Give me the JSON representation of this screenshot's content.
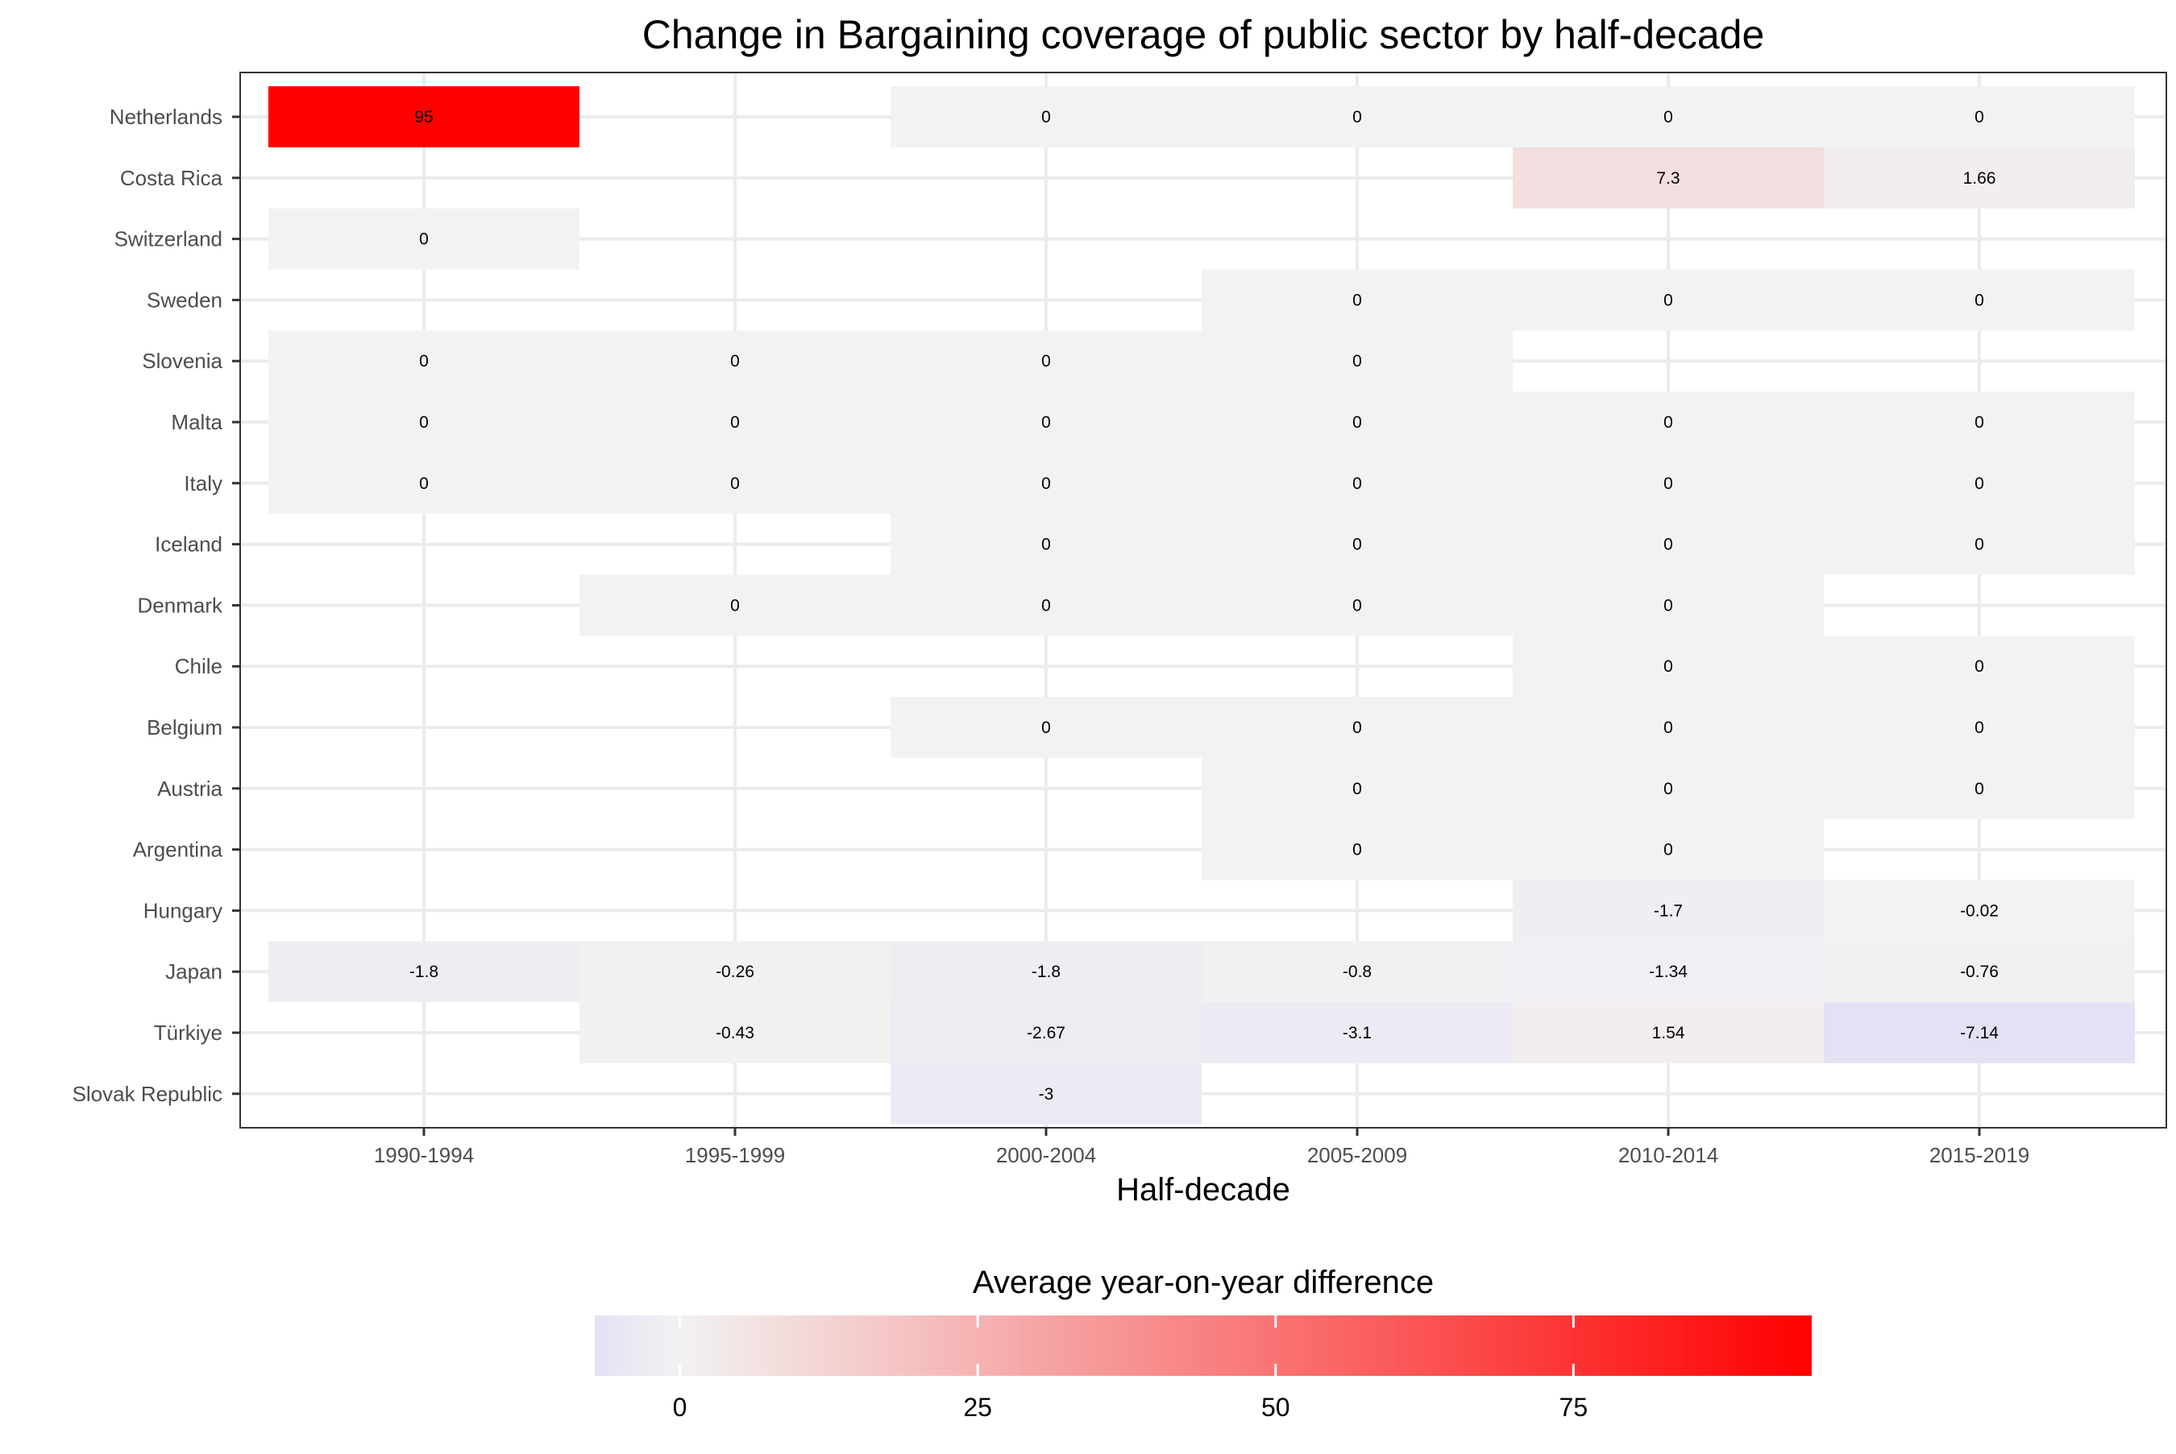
{
  "chart_data": {
    "type": "heatmap",
    "title": "Change in Bargaining coverage of public sector by half-decade",
    "xlabel": "Half-decade",
    "ylabel": "",
    "x_categories": [
      "1990-1994",
      "1995-1999",
      "2000-2004",
      "2005-2009",
      "2010-2014",
      "2015-2019"
    ],
    "y_categories": [
      "Netherlands",
      "Costa Rica",
      "Switzerland",
      "Sweden",
      "Slovenia",
      "Malta",
      "Italy",
      "Iceland",
      "Denmark",
      "Chile",
      "Belgium",
      "Austria",
      "Argentina",
      "Hungary",
      "Japan",
      "Türkiye",
      "Slovak Republic"
    ],
    "cells": [
      {
        "y": "Netherlands",
        "x": "1990-1994",
        "value": 95,
        "label": "95"
      },
      {
        "y": "Netherlands",
        "x": "2000-2004",
        "value": 0,
        "label": "0"
      },
      {
        "y": "Netherlands",
        "x": "2005-2009",
        "value": 0,
        "label": "0"
      },
      {
        "y": "Netherlands",
        "x": "2010-2014",
        "value": 0,
        "label": "0"
      },
      {
        "y": "Netherlands",
        "x": "2015-2019",
        "value": 0,
        "label": "0"
      },
      {
        "y": "Costa Rica",
        "x": "2010-2014",
        "value": 7.3,
        "label": "7.3"
      },
      {
        "y": "Costa Rica",
        "x": "2015-2019",
        "value": 1.66,
        "label": "1.66"
      },
      {
        "y": "Switzerland",
        "x": "1990-1994",
        "value": 0,
        "label": "0"
      },
      {
        "y": "Sweden",
        "x": "2005-2009",
        "value": 0,
        "label": "0"
      },
      {
        "y": "Sweden",
        "x": "2010-2014",
        "value": 0,
        "label": "0"
      },
      {
        "y": "Sweden",
        "x": "2015-2019",
        "value": 0,
        "label": "0"
      },
      {
        "y": "Slovenia",
        "x": "1990-1994",
        "value": 0,
        "label": "0"
      },
      {
        "y": "Slovenia",
        "x": "1995-1999",
        "value": 0,
        "label": "0"
      },
      {
        "y": "Slovenia",
        "x": "2000-2004",
        "value": 0,
        "label": "0"
      },
      {
        "y": "Slovenia",
        "x": "2005-2009",
        "value": 0,
        "label": "0"
      },
      {
        "y": "Malta",
        "x": "1990-1994",
        "value": 0,
        "label": "0"
      },
      {
        "y": "Malta",
        "x": "1995-1999",
        "value": 0,
        "label": "0"
      },
      {
        "y": "Malta",
        "x": "2000-2004",
        "value": 0,
        "label": "0"
      },
      {
        "y": "Malta",
        "x": "2005-2009",
        "value": 0,
        "label": "0"
      },
      {
        "y": "Malta",
        "x": "2010-2014",
        "value": 0,
        "label": "0"
      },
      {
        "y": "Malta",
        "x": "2015-2019",
        "value": 0,
        "label": "0"
      },
      {
        "y": "Italy",
        "x": "1990-1994",
        "value": 0,
        "label": "0"
      },
      {
        "y": "Italy",
        "x": "1995-1999",
        "value": 0,
        "label": "0"
      },
      {
        "y": "Italy",
        "x": "2000-2004",
        "value": 0,
        "label": "0"
      },
      {
        "y": "Italy",
        "x": "2005-2009",
        "value": 0,
        "label": "0"
      },
      {
        "y": "Italy",
        "x": "2010-2014",
        "value": 0,
        "label": "0"
      },
      {
        "y": "Italy",
        "x": "2015-2019",
        "value": 0,
        "label": "0"
      },
      {
        "y": "Iceland",
        "x": "2000-2004",
        "value": 0,
        "label": "0"
      },
      {
        "y": "Iceland",
        "x": "2005-2009",
        "value": 0,
        "label": "0"
      },
      {
        "y": "Iceland",
        "x": "2010-2014",
        "value": 0,
        "label": "0"
      },
      {
        "y": "Iceland",
        "x": "2015-2019",
        "value": 0,
        "label": "0"
      },
      {
        "y": "Denmark",
        "x": "1995-1999",
        "value": 0,
        "label": "0"
      },
      {
        "y": "Denmark",
        "x": "2000-2004",
        "value": 0,
        "label": "0"
      },
      {
        "y": "Denmark",
        "x": "2005-2009",
        "value": 0,
        "label": "0"
      },
      {
        "y": "Denmark",
        "x": "2010-2014",
        "value": 0,
        "label": "0"
      },
      {
        "y": "Chile",
        "x": "2010-2014",
        "value": 0,
        "label": "0"
      },
      {
        "y": "Chile",
        "x": "2015-2019",
        "value": 0,
        "label": "0"
      },
      {
        "y": "Belgium",
        "x": "2000-2004",
        "value": 0,
        "label": "0"
      },
      {
        "y": "Belgium",
        "x": "2005-2009",
        "value": 0,
        "label": "0"
      },
      {
        "y": "Belgium",
        "x": "2010-2014",
        "value": 0,
        "label": "0"
      },
      {
        "y": "Belgium",
        "x": "2015-2019",
        "value": 0,
        "label": "0"
      },
      {
        "y": "Austria",
        "x": "2005-2009",
        "value": 0,
        "label": "0"
      },
      {
        "y": "Austria",
        "x": "2010-2014",
        "value": 0,
        "label": "0"
      },
      {
        "y": "Austria",
        "x": "2015-2019",
        "value": 0,
        "label": "0"
      },
      {
        "y": "Argentina",
        "x": "2005-2009",
        "value": 0,
        "label": "0"
      },
      {
        "y": "Argentina",
        "x": "2010-2014",
        "value": 0,
        "label": "0"
      },
      {
        "y": "Hungary",
        "x": "2010-2014",
        "value": -1.7,
        "label": "-1.7"
      },
      {
        "y": "Hungary",
        "x": "2015-2019",
        "value": -0.02,
        "label": "-0.02"
      },
      {
        "y": "Japan",
        "x": "1990-1994",
        "value": -1.8,
        "label": "-1.8"
      },
      {
        "y": "Japan",
        "x": "1995-1999",
        "value": -0.26,
        "label": "-0.26"
      },
      {
        "y": "Japan",
        "x": "2000-2004",
        "value": -1.8,
        "label": "-1.8"
      },
      {
        "y": "Japan",
        "x": "2005-2009",
        "value": -0.8,
        "label": "-0.8"
      },
      {
        "y": "Japan",
        "x": "2010-2014",
        "value": -1.34,
        "label": "-1.34"
      },
      {
        "y": "Japan",
        "x": "2015-2019",
        "value": -0.76,
        "label": "-0.76"
      },
      {
        "y": "Türkiye",
        "x": "1995-1999",
        "value": -0.43,
        "label": "-0.43"
      },
      {
        "y": "Türkiye",
        "x": "2000-2004",
        "value": -2.67,
        "label": "-2.67"
      },
      {
        "y": "Türkiye",
        "x": "2005-2009",
        "value": -3.1,
        "label": "-3.1"
      },
      {
        "y": "Türkiye",
        "x": "2010-2014",
        "value": 1.54,
        "label": "1.54"
      },
      {
        "y": "Türkiye",
        "x": "2015-2019",
        "value": -7.14,
        "label": "-7.14"
      },
      {
        "y": "Slovak Republic",
        "x": "2000-2004",
        "value": -3,
        "label": "-3"
      }
    ],
    "legend": {
      "title": "Average year-on-year difference",
      "position": "bottom",
      "ticks": [
        0,
        25,
        50,
        75
      ],
      "tick_labels": [
        "0",
        "25",
        "50",
        "75"
      ],
      "range": [
        -7.14,
        95
      ]
    },
    "colors": {
      "low": "#e6e0f5",
      "mid": "#f2f2f2",
      "high": "#ff0000",
      "background": "#ffffff",
      "grid": "#ebebeb",
      "cell_text": "#000000",
      "axis_text": "#4d4d4d"
    },
    "grid": true
  }
}
